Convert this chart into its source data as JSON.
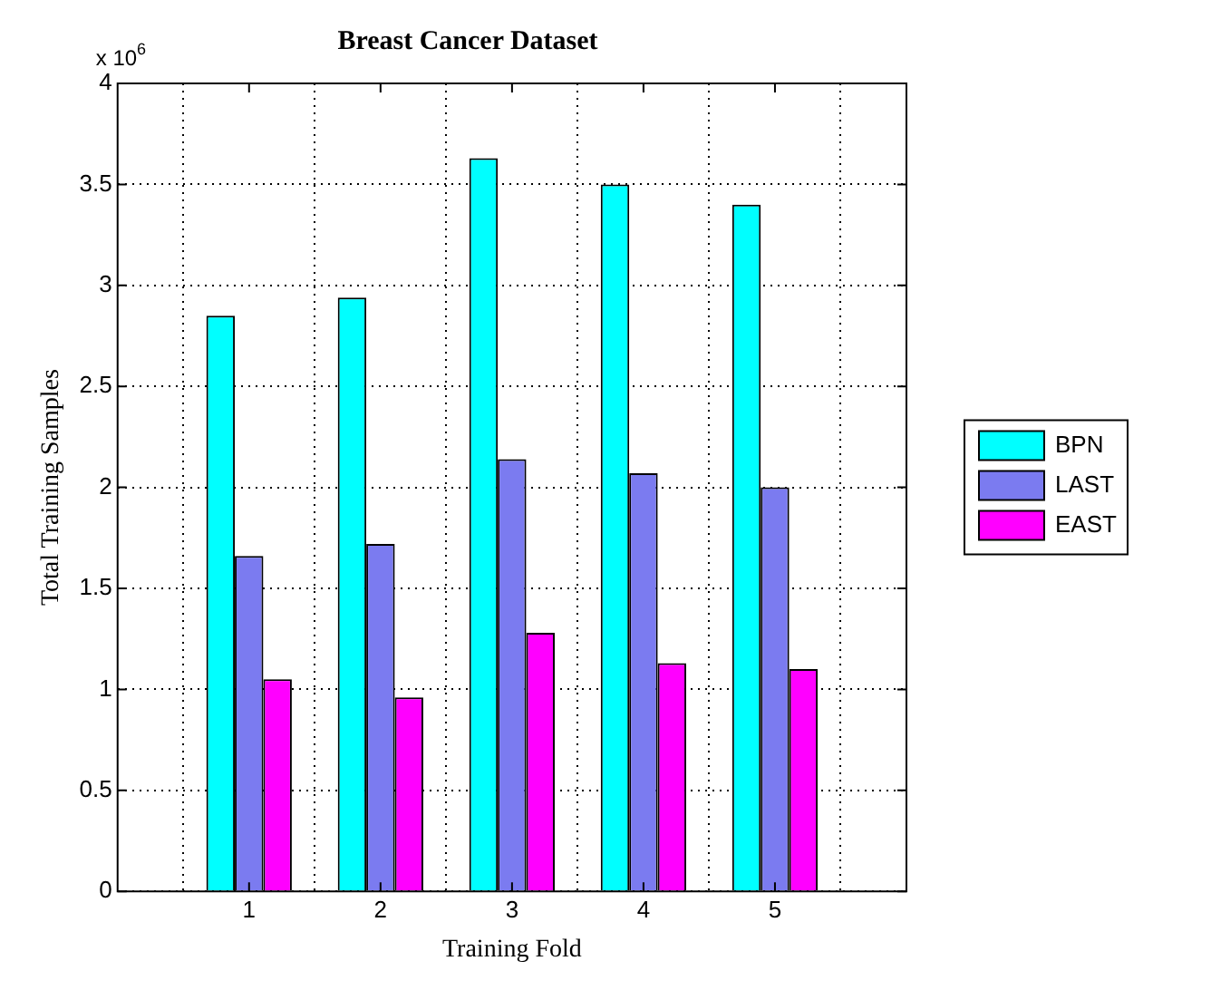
{
  "chart_data": {
    "type": "bar",
    "title": "Breast Cancer Dataset",
    "xlabel": "Training Fold",
    "ylabel": "Total Training Samples",
    "annotations": [
      "x 10$^{6}$"
    ],
    "x": [
      1,
      2,
      3,
      4,
      5
    ],
    "xlim": [
      0,
      6
    ],
    "xticks": [
      1,
      2,
      3,
      4,
      5
    ],
    "ylim": [
      0,
      4
    ],
    "yticks": [
      0,
      0.5,
      1,
      1.5,
      2,
      2.5,
      3,
      3.5,
      4
    ],
    "series": [
      {
        "name": "BPN",
        "color": "#00ffff",
        "values": [
          2.85,
          2.94,
          3.63,
          3.5,
          3.4
        ]
      },
      {
        "name": "LAST",
        "color": "#7b7bf0",
        "values": [
          1.66,
          1.72,
          2.14,
          2.07,
          2.0
        ]
      },
      {
        "name": "EAST",
        "color": "#ff00ff",
        "values": [
          1.05,
          0.96,
          1.28,
          1.13,
          1.1
        ]
      }
    ],
    "grid": true,
    "legend": "right"
  }
}
